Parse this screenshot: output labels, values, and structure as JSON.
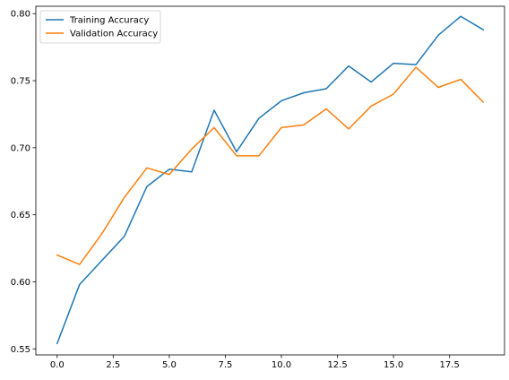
{
  "chart_data": {
    "type": "line",
    "title": "",
    "xlabel": "",
    "ylabel": "",
    "xlim": [
      -0.95,
      19.95
    ],
    "ylim": [
      0.5455,
      0.8055
    ],
    "x_ticks": [
      0.0,
      2.5,
      5.0,
      7.5,
      10.0,
      12.5,
      15.0,
      17.5
    ],
    "x_tick_labels": [
      "0.0",
      "2.5",
      "5.0",
      "7.5",
      "10.0",
      "12.5",
      "15.0",
      "17.5"
    ],
    "y_ticks": [
      0.55,
      0.6,
      0.65,
      0.7,
      0.75,
      0.8
    ],
    "y_tick_labels": [
      "0.55",
      "0.60",
      "0.65",
      "0.70",
      "0.75",
      "0.80"
    ],
    "grid": false,
    "legend_position": "top-left",
    "x": [
      0,
      1,
      2,
      3,
      4,
      5,
      6,
      7,
      8,
      9,
      10,
      11,
      12,
      13,
      14,
      15,
      16,
      17,
      18,
      19
    ],
    "series": [
      {
        "name": "Training Accuracy",
        "color": "#1f77b4",
        "values": [
          0.554,
          0.598,
          0.616,
          0.634,
          0.671,
          0.684,
          0.682,
          0.728,
          0.697,
          0.722,
          0.735,
          0.741,
          0.744,
          0.761,
          0.749,
          0.763,
          0.762,
          0.784,
          0.798,
          0.788
        ]
      },
      {
        "name": "Validation Accuracy",
        "color": "#ff7f0e",
        "values": [
          0.62,
          0.613,
          0.636,
          0.663,
          0.685,
          0.68,
          0.699,
          0.715,
          0.694,
          0.694,
          0.715,
          0.717,
          0.729,
          0.714,
          0.731,
          0.74,
          0.76,
          0.745,
          0.751,
          0.734
        ]
      }
    ]
  }
}
